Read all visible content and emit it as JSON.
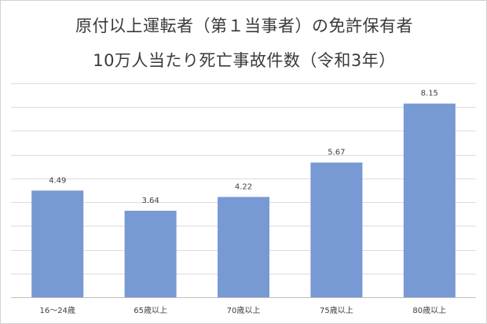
{
  "chart_data": {
    "type": "bar",
    "title_lines": [
      "原付以上運転者（第１当事者）の免許保有者",
      "10万人当たり死亡事故件数（令和3年）"
    ],
    "categories": [
      "16～24歳",
      "65歳以上",
      "70歳以上",
      "75歳以上",
      "80歳以上"
    ],
    "values": [
      4.49,
      3.64,
      4.22,
      5.67,
      8.15
    ],
    "data_labels": [
      "4.49",
      "3.64",
      "4.22",
      "5.67",
      "8.15"
    ],
    "ylim": [
      0,
      9
    ],
    "y_gridline_step": 1,
    "y_tick_labels_visible": false,
    "grid": true,
    "legend": "none",
    "bar_color": "#7799d4"
  }
}
